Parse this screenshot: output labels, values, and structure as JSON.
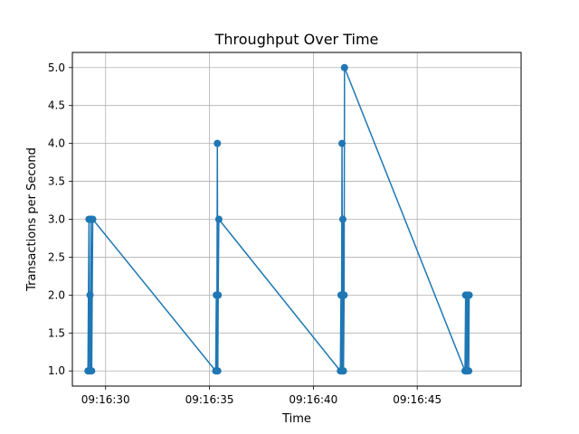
{
  "chart_data": {
    "type": "line",
    "title": "Throughput Over Time",
    "xlabel": "Time",
    "ylabel": "Transactions per Second",
    "x_ticks": [
      "09:16:30",
      "09:16:35",
      "09:16:40",
      "09:16:45"
    ],
    "x_tick_values": [
      "09:16:30",
      "09:16:35",
      "09:16:40",
      "09:16:45"
    ],
    "xlim": [
      "09:16:28.400",
      "09:16:50.000"
    ],
    "y_ticks": [
      "1.0",
      "1.5",
      "2.0",
      "2.5",
      "3.0",
      "3.5",
      "4.0",
      "4.5",
      "5.0"
    ],
    "ylim": [
      0.8,
      5.2
    ],
    "grid": true,
    "series": [
      {
        "color": "#1f77b4",
        "marker": "circle",
        "points": [
          {
            "x": "09:16:29.150",
            "y": 1
          },
          {
            "x": "09:16:29.200",
            "y": 3
          },
          {
            "x": "09:16:29.220",
            "y": 1
          },
          {
            "x": "09:16:29.250",
            "y": 2
          },
          {
            "x": "09:16:29.270",
            "y": 1
          },
          {
            "x": "09:16:29.300",
            "y": 3
          },
          {
            "x": "09:16:29.330",
            "y": 1
          },
          {
            "x": "09:16:29.380",
            "y": 3
          },
          {
            "x": "09:16:35.300",
            "y": 1
          },
          {
            "x": "09:16:35.330",
            "y": 2
          },
          {
            "x": "09:16:35.350",
            "y": 1
          },
          {
            "x": "09:16:35.380",
            "y": 4
          },
          {
            "x": "09:16:35.400",
            "y": 1
          },
          {
            "x": "09:16:35.420",
            "y": 2
          },
          {
            "x": "09:16:35.450",
            "y": 3
          },
          {
            "x": "09:16:41.300",
            "y": 1
          },
          {
            "x": "09:16:41.330",
            "y": 2
          },
          {
            "x": "09:16:41.350",
            "y": 1
          },
          {
            "x": "09:16:41.380",
            "y": 4
          },
          {
            "x": "09:16:41.400",
            "y": 1
          },
          {
            "x": "09:16:41.420",
            "y": 3
          },
          {
            "x": "09:16:41.450",
            "y": 1
          },
          {
            "x": "09:16:41.480",
            "y": 2
          },
          {
            "x": "09:16:41.500",
            "y": 5
          },
          {
            "x": "09:16:47.300",
            "y": 1
          },
          {
            "x": "09:16:47.330",
            "y": 2
          },
          {
            "x": "09:16:47.350",
            "y": 1
          },
          {
            "x": "09:16:47.380",
            "y": 2
          },
          {
            "x": "09:16:47.400",
            "y": 1
          },
          {
            "x": "09:16:47.450",
            "y": 2
          },
          {
            "x": "09:16:47.480",
            "y": 1
          },
          {
            "x": "09:16:47.500",
            "y": 2
          }
        ]
      }
    ]
  }
}
